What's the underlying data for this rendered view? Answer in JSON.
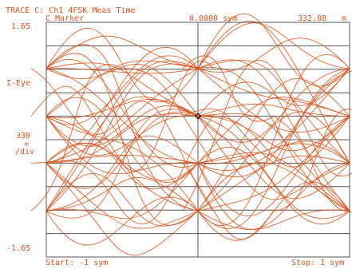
{
  "header": {
    "trace_title": "TRACE C: Ch1 4FSK Meas Time",
    "marker_label": "C Marker",
    "marker_x_value": "0.0000 sym",
    "marker_y_value": "332.08",
    "marker_y_unit": "m"
  },
  "axis": {
    "y_top_label": "1.65",
    "y_bottom_label": "-1.65",
    "y_name": "I-Eye",
    "scale_value": "330",
    "scale_unit_m": "m",
    "scale_unit_div": "/div",
    "start_label": "Start: -1 sym",
    "stop_label": "Stop: 1 sym"
  },
  "colors": {
    "accent": "#d9541e",
    "trace": "#d9541e",
    "grid": "#555555",
    "background": "#ffffff"
  },
  "chart_data": {
    "type": "line",
    "title": "TRACE C: Ch1 4FSK Meas Time",
    "ylabel": "I-Eye",
    "xlim": [
      -1,
      1
    ],
    "ylim": [
      -1.65,
      1.65
    ],
    "y_scale_per_div": 0.33,
    "x_divisions": 2,
    "y_divisions": 10,
    "eye_levels": [
      1.0,
      0.33,
      -0.33,
      -1.0
    ],
    "marker": {
      "x": 0.0,
      "y": 0.33208
    },
    "grid": true,
    "legend": "none"
  }
}
